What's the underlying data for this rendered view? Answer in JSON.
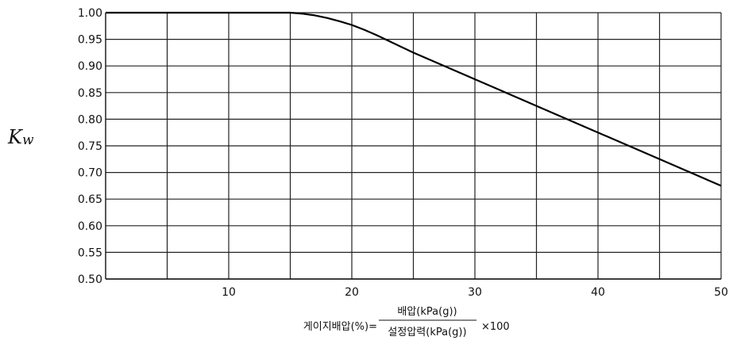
{
  "chart_data": {
    "type": "line",
    "title": "",
    "ylabel": {
      "main": "K",
      "sub": "w"
    },
    "xlabel": {
      "prefix": "게이지배압(%)=",
      "numerator": "배압(kPa(g))",
      "denominator": "설정압력(kPa(g))",
      "suffix": "×100"
    },
    "xlim": [
      0,
      50
    ],
    "ylim": [
      0.5,
      1.0
    ],
    "x_ticks": [
      10,
      20,
      30,
      40,
      50
    ],
    "x_grid": [
      5,
      10,
      15,
      20,
      25,
      30,
      35,
      40,
      45,
      50
    ],
    "y_ticks": [
      "0.50",
      "0.55",
      "0.60",
      "0.65",
      "0.70",
      "0.75",
      "0.80",
      "0.85",
      "0.90",
      "0.95",
      "1.00"
    ],
    "grid": true,
    "series": [
      {
        "x": [
          0,
          15,
          16,
          17,
          18,
          19,
          20,
          21,
          22,
          23,
          25,
          30,
          35,
          40,
          45,
          50
        ],
        "y": [
          1.0,
          1.0,
          0.998,
          0.995,
          0.99,
          0.984,
          0.977,
          0.968,
          0.958,
          0.947,
          0.925,
          0.875,
          0.825,
          0.775,
          0.725,
          0.675
        ],
        "color": "#000000"
      }
    ]
  }
}
